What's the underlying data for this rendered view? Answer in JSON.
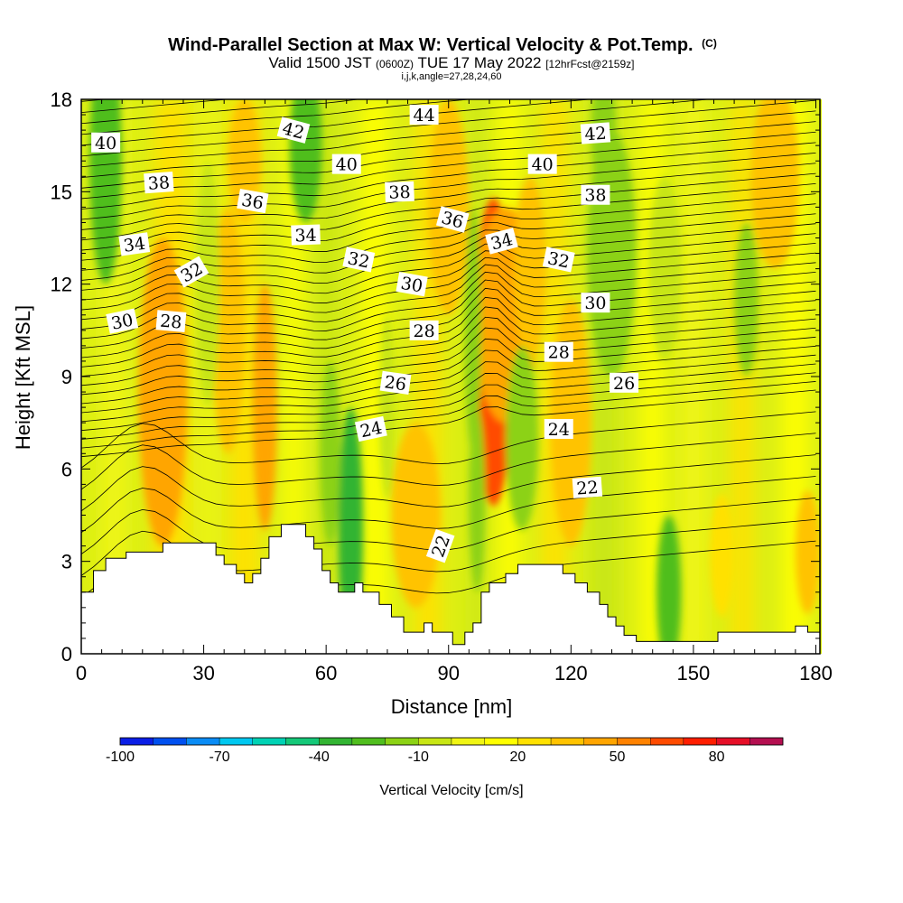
{
  "chart_data": {
    "type": "heatmap",
    "title": "Wind-Parallel Section at Max W: Vertical Velocity & Pot.Temp.",
    "title_mark": "(C)",
    "subtitle_pre": "Valid 1500 JST",
    "subtitle_utc": "(0600Z)",
    "subtitle_date": "TUE 17 May 2022",
    "subtitle_fcst": "[12hrFcst@2159z]",
    "subtitle2": "i,j,k,angle=27,28,24,60",
    "xlabel": "Distance [nm]",
    "ylabel": "Height [Kft MSL]",
    "xlim": [
      0,
      181
    ],
    "ylim": [
      0,
      18
    ],
    "xticks": [
      0,
      30,
      60,
      90,
      120,
      150,
      180
    ],
    "yticks": [
      0,
      3,
      6,
      9,
      12,
      15,
      18
    ],
    "colorbar": {
      "label": "Vertical Velocity [cm/s]",
      "range": [
        -100,
        100
      ],
      "tick_values": [
        -100,
        -70,
        -40,
        -10,
        20,
        50,
        80
      ],
      "tick_labels": [
        "-100",
        "-70",
        "-40",
        "-10",
        "20",
        "50",
        "80"
      ],
      "colors": [
        "#0a1ee6",
        "#0050f0",
        "#0a8cf5",
        "#00c8f0",
        "#00d2b4",
        "#14c878",
        "#32b432",
        "#50be1e",
        "#8cd214",
        "#c8e614",
        "#f0f514",
        "#ffff00",
        "#ffe100",
        "#ffc300",
        "#ffa500",
        "#ff8200",
        "#ff4b00",
        "#ff1e00",
        "#e60f28",
        "#b40f50",
        "#780f78"
      ]
    },
    "terrain": [
      [
        0,
        2
      ],
      [
        3,
        2
      ],
      [
        3,
        2.7
      ],
      [
        6,
        2.7
      ],
      [
        6,
        3.1
      ],
      [
        11,
        3.1
      ],
      [
        11,
        3.3
      ],
      [
        20,
        3.3
      ],
      [
        20,
        3.6
      ],
      [
        33,
        3.6
      ],
      [
        33,
        3.2
      ],
      [
        35,
        3.2
      ],
      [
        35,
        2.9
      ],
      [
        38,
        2.9
      ],
      [
        38,
        2.6
      ],
      [
        40,
        2.6
      ],
      [
        40,
        2.3
      ],
      [
        42,
        2.3
      ],
      [
        42,
        2.6
      ],
      [
        44,
        2.6
      ],
      [
        44,
        3.1
      ],
      [
        46,
        3.1
      ],
      [
        46,
        3.8
      ],
      [
        49,
        3.8
      ],
      [
        49,
        4.2
      ],
      [
        55,
        4.2
      ],
      [
        55,
        3.8
      ],
      [
        57,
        3.8
      ],
      [
        57,
        3.4
      ],
      [
        59,
        3.4
      ],
      [
        59,
        2.7
      ],
      [
        61,
        2.7
      ],
      [
        61,
        2.3
      ],
      [
        63,
        2.3
      ],
      [
        63,
        2.0
      ],
      [
        67,
        2.0
      ],
      [
        67,
        2.3
      ],
      [
        69,
        2.3
      ],
      [
        69,
        2.0
      ],
      [
        73,
        2.0
      ],
      [
        73,
        1.6
      ],
      [
        76,
        1.6
      ],
      [
        76,
        1.2
      ],
      [
        79,
        1.2
      ],
      [
        79,
        0.7
      ],
      [
        84,
        0.7
      ],
      [
        84,
        1.0
      ],
      [
        86,
        1.0
      ],
      [
        86,
        0.7
      ],
      [
        91,
        0.7
      ],
      [
        91,
        0.3
      ],
      [
        94,
        0.3
      ],
      [
        94,
        0.7
      ],
      [
        96,
        0.7
      ],
      [
        96,
        1.0
      ],
      [
        98,
        1.0
      ],
      [
        98,
        2.0
      ],
      [
        100,
        2.0
      ],
      [
        100,
        2.3
      ],
      [
        104,
        2.3
      ],
      [
        104,
        2.6
      ],
      [
        107,
        2.6
      ],
      [
        107,
        2.9
      ],
      [
        118,
        2.9
      ],
      [
        118,
        2.6
      ],
      [
        121,
        2.6
      ],
      [
        121,
        2.3
      ],
      [
        124,
        2.3
      ],
      [
        124,
        2.0
      ],
      [
        127,
        2.0
      ],
      [
        127,
        1.6
      ],
      [
        129,
        1.6
      ],
      [
        129,
        1.2
      ],
      [
        131,
        1.2
      ],
      [
        131,
        0.9
      ],
      [
        133,
        0.9
      ],
      [
        133,
        0.6
      ],
      [
        136,
        0.6
      ],
      [
        136,
        0.4
      ],
      [
        156,
        0.4
      ],
      [
        156,
        0.7
      ],
      [
        175,
        0.7
      ],
      [
        175,
        0.9
      ],
      [
        178,
        0.9
      ],
      [
        178,
        0.7
      ],
      [
        181,
        0.7
      ]
    ],
    "wv_cells": [
      {
        "x": 21,
        "y": 7.6,
        "rx": 3,
        "ry": 3.2,
        "w": 60
      },
      {
        "x": 20,
        "y": 8.5,
        "rx": 6,
        "ry": 5,
        "w": 35
      },
      {
        "x": 100,
        "y": 8.8,
        "rx": 2.4,
        "ry": 3.2,
        "w": 95
      },
      {
        "x": 101,
        "y": 9.8,
        "rx": 5,
        "ry": 5,
        "w": 50
      },
      {
        "x": 104,
        "y": 11,
        "rx": 8,
        "ry": 3.5,
        "w": 30
      },
      {
        "x": 45,
        "y": 8,
        "rx": 3,
        "ry": 4,
        "w": 32
      },
      {
        "x": 36,
        "y": 10.5,
        "rx": 4,
        "ry": 4,
        "w": 20
      },
      {
        "x": 40,
        "y": 16,
        "rx": 4,
        "ry": 2,
        "w": 28
      },
      {
        "x": 82,
        "y": 4.5,
        "rx": 6,
        "ry": 3,
        "w": 24
      },
      {
        "x": 90,
        "y": 14.5,
        "rx": 5,
        "ry": 3.5,
        "w": 24
      },
      {
        "x": 110,
        "y": 12.5,
        "rx": 4,
        "ry": 3,
        "w": 28
      },
      {
        "x": 120,
        "y": 7.5,
        "rx": 5,
        "ry": 4,
        "w": 22
      },
      {
        "x": 170,
        "y": 15.5,
        "rx": 6,
        "ry": 3,
        "w": 24
      },
      {
        "x": 178,
        "y": 3.3,
        "rx": 3,
        "ry": 2,
        "w": 20
      },
      {
        "x": 157,
        "y": 3.2,
        "rx": 3,
        "ry": 2,
        "w": 15
      },
      {
        "x": 66,
        "y": 4,
        "rx": 3,
        "ry": 4,
        "w": -50
      },
      {
        "x": 61,
        "y": 6.5,
        "rx": 2.5,
        "ry": 3,
        "w": -30
      },
      {
        "x": 55,
        "y": 16.5,
        "rx": 4,
        "ry": 2.5,
        "w": -35
      },
      {
        "x": 6,
        "y": 16,
        "rx": 4,
        "ry": 4,
        "w": -35
      },
      {
        "x": 31,
        "y": 12,
        "rx": 3,
        "ry": 4,
        "w": -20
      },
      {
        "x": 96,
        "y": 10.5,
        "rx": 2,
        "ry": 4,
        "w": -25
      },
      {
        "x": 97,
        "y": 5,
        "rx": 2,
        "ry": 3,
        "w": -30
      },
      {
        "x": 108,
        "y": 7,
        "rx": 4,
        "ry": 3,
        "w": -25
      },
      {
        "x": 130,
        "y": 13,
        "rx": 6,
        "ry": 4,
        "w": -30
      },
      {
        "x": 128,
        "y": 17,
        "rx": 3,
        "ry": 2,
        "w": -30
      },
      {
        "x": 144,
        "y": 2,
        "rx": 3,
        "ry": 2.5,
        "w": -35
      },
      {
        "x": 143,
        "y": 12.5,
        "rx": 4,
        "ry": 3,
        "w": -20
      },
      {
        "x": 163,
        "y": 11.5,
        "rx": 3,
        "ry": 2.5,
        "w": -25
      },
      {
        "x": 75,
        "y": 8,
        "rx": 2,
        "ry": 3,
        "w": -20
      }
    ],
    "theta_labels": [
      {
        "text": "44",
        "x": 84,
        "y": 17.5,
        "angle": 0
      },
      {
        "text": "42",
        "x": 52,
        "y": 17.0,
        "angle": 15
      },
      {
        "text": "42",
        "x": 126,
        "y": 16.9,
        "angle": -4
      },
      {
        "text": "40",
        "x": 6,
        "y": 16.6,
        "angle": 0
      },
      {
        "text": "40",
        "x": 65,
        "y": 15.9,
        "angle": 0
      },
      {
        "text": "40",
        "x": 113,
        "y": 15.9,
        "angle": 0
      },
      {
        "text": "38",
        "x": 19,
        "y": 15.3,
        "angle": -4
      },
      {
        "text": "38",
        "x": 78,
        "y": 15.0,
        "angle": -2
      },
      {
        "text": "38",
        "x": 126,
        "y": 14.9,
        "angle": 0
      },
      {
        "text": "36",
        "x": 42,
        "y": 14.7,
        "angle": 10
      },
      {
        "text": "36",
        "x": 91,
        "y": 14.1,
        "angle": 15
      },
      {
        "text": "34",
        "x": 13,
        "y": 13.3,
        "angle": -8
      },
      {
        "text": "34",
        "x": 55,
        "y": 13.6,
        "angle": -2
      },
      {
        "text": "34",
        "x": 103,
        "y": 13.4,
        "angle": -15
      },
      {
        "text": "32",
        "x": 27,
        "y": 12.4,
        "angle": -30
      },
      {
        "text": "32",
        "x": 68,
        "y": 12.8,
        "angle": 12
      },
      {
        "text": "32",
        "x": 117,
        "y": 12.8,
        "angle": 12
      },
      {
        "text": "30",
        "x": 10,
        "y": 10.8,
        "angle": -12
      },
      {
        "text": "30",
        "x": 81,
        "y": 12.0,
        "angle": 10
      },
      {
        "text": "30",
        "x": 126,
        "y": 11.4,
        "angle": 0
      },
      {
        "text": "28",
        "x": 22,
        "y": 10.8,
        "angle": 5
      },
      {
        "text": "28",
        "x": 84,
        "y": 10.5,
        "angle": 0
      },
      {
        "text": "28",
        "x": 117,
        "y": 9.8,
        "angle": 0
      },
      {
        "text": "26",
        "x": 77,
        "y": 8.8,
        "angle": 8
      },
      {
        "text": "26",
        "x": 133,
        "y": 8.8,
        "angle": 0
      },
      {
        "text": "24",
        "x": 71,
        "y": 7.3,
        "angle": -12
      },
      {
        "text": "24",
        "x": 117,
        "y": 7.3,
        "angle": 0
      },
      {
        "text": "22",
        "x": 88,
        "y": 3.5,
        "angle": -70
      },
      {
        "text": "22",
        "x": 124,
        "y": 5.4,
        "angle": -4
      }
    ]
  }
}
